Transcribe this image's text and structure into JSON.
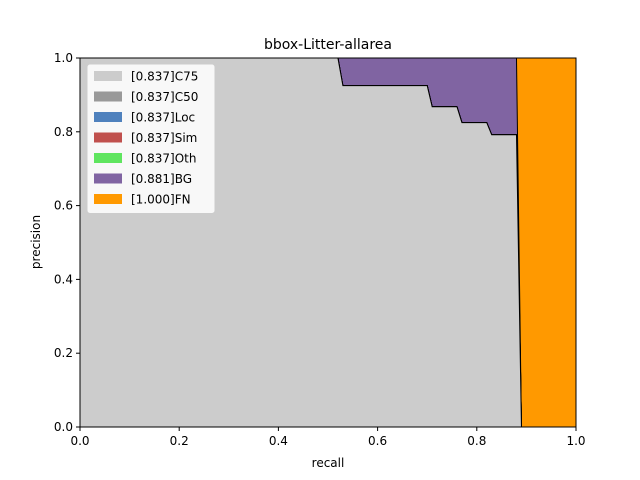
{
  "chart_data": {
    "type": "area",
    "title": "bbox-Litter-allarea",
    "xlabel": "recall",
    "ylabel": "precision",
    "xlim": [
      0.0,
      1.0
    ],
    "ylim": [
      0.0,
      1.0
    ],
    "xticks": [
      "0.0",
      "0.2",
      "0.4",
      "0.6",
      "0.8",
      "1.0"
    ],
    "yticks": [
      "0.0",
      "0.2",
      "0.4",
      "0.6",
      "0.8",
      "1.0"
    ],
    "grid": false,
    "legend_position": "top-left",
    "series": [
      {
        "name": "[0.837]C75",
        "color": "#cccccc",
        "x": [
          0.0,
          0.52,
          0.53,
          0.7,
          0.71,
          0.76,
          0.77,
          0.82,
          0.83,
          0.88,
          0.89,
          0.89
        ],
        "y": [
          1.0,
          1.0,
          0.925,
          0.925,
          0.868,
          0.868,
          0.825,
          0.825,
          0.792,
          0.792,
          0.0,
          0.0
        ]
      },
      {
        "name": "[0.837]C50",
        "color": "#999999",
        "x": [
          0.0,
          0.52,
          0.53,
          0.7,
          0.71,
          0.76,
          0.77,
          0.82,
          0.83,
          0.88,
          0.89,
          0.89
        ],
        "y": [
          1.0,
          1.0,
          0.925,
          0.925,
          0.868,
          0.868,
          0.825,
          0.825,
          0.792,
          0.792,
          0.0,
          0.0
        ]
      },
      {
        "name": "[0.837]Loc",
        "color": "#4f81bd",
        "x": [
          0.0,
          0.52,
          0.53,
          0.7,
          0.71,
          0.76,
          0.77,
          0.82,
          0.83,
          0.88,
          0.89,
          0.89
        ],
        "y": [
          1.0,
          1.0,
          0.925,
          0.925,
          0.868,
          0.868,
          0.825,
          0.825,
          0.792,
          0.792,
          0.0,
          0.0
        ]
      },
      {
        "name": "[0.837]Sim",
        "color": "#c0504d",
        "x": [
          0.0,
          0.52,
          0.53,
          0.7,
          0.71,
          0.76,
          0.77,
          0.82,
          0.83,
          0.88,
          0.89,
          0.89
        ],
        "y": [
          1.0,
          1.0,
          0.925,
          0.925,
          0.868,
          0.868,
          0.825,
          0.825,
          0.792,
          0.792,
          0.0,
          0.0
        ]
      },
      {
        "name": "[0.837]Oth",
        "color": "#5fe55f",
        "x": [
          0.0,
          0.52,
          0.53,
          0.7,
          0.71,
          0.76,
          0.77,
          0.82,
          0.83,
          0.88,
          0.89,
          0.89
        ],
        "y": [
          1.0,
          1.0,
          0.925,
          0.925,
          0.868,
          0.868,
          0.825,
          0.825,
          0.792,
          0.792,
          0.0,
          0.0
        ]
      },
      {
        "name": "[0.881]BG",
        "color": "#8064a2",
        "x": [
          0.0,
          0.88,
          0.89,
          0.89
        ],
        "y": [
          1.0,
          1.0,
          0.0,
          0.0
        ]
      },
      {
        "name": "[1.000]FN",
        "color": "#ff9900",
        "x": [
          0.0,
          1.0
        ],
        "y": [
          1.0,
          1.0
        ]
      }
    ]
  }
}
